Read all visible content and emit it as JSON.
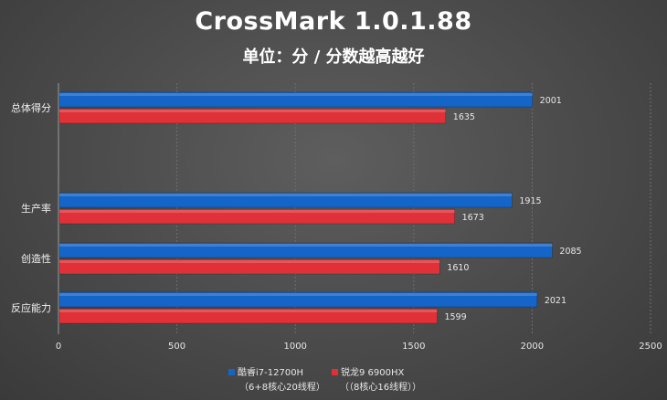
{
  "chart_data": {
    "type": "bar",
    "orientation": "horizontal",
    "title": "CrossMark 1.0.1.88",
    "subtitle": "单位：分 / 分数越高越好",
    "categories": [
      "总体得分",
      "生产率",
      "创造性",
      "反应能力"
    ],
    "series": [
      {
        "name": "酷睿i7-12700H",
        "sub": "（6+8核心20线程）",
        "color": "#1565c8",
        "values": [
          2001,
          1915,
          2085,
          2021
        ]
      },
      {
        "name": "锐龙9 6900HX",
        "sub": "（（8核心16线程））",
        "color": "#e03038",
        "values": [
          1635,
          1673,
          1610,
          1599
        ]
      }
    ],
    "xlim": [
      0,
      2500
    ],
    "xticks": [
      0,
      500,
      1000,
      1500,
      2000,
      2500
    ],
    "grid": true,
    "legend_position": "bottom"
  }
}
